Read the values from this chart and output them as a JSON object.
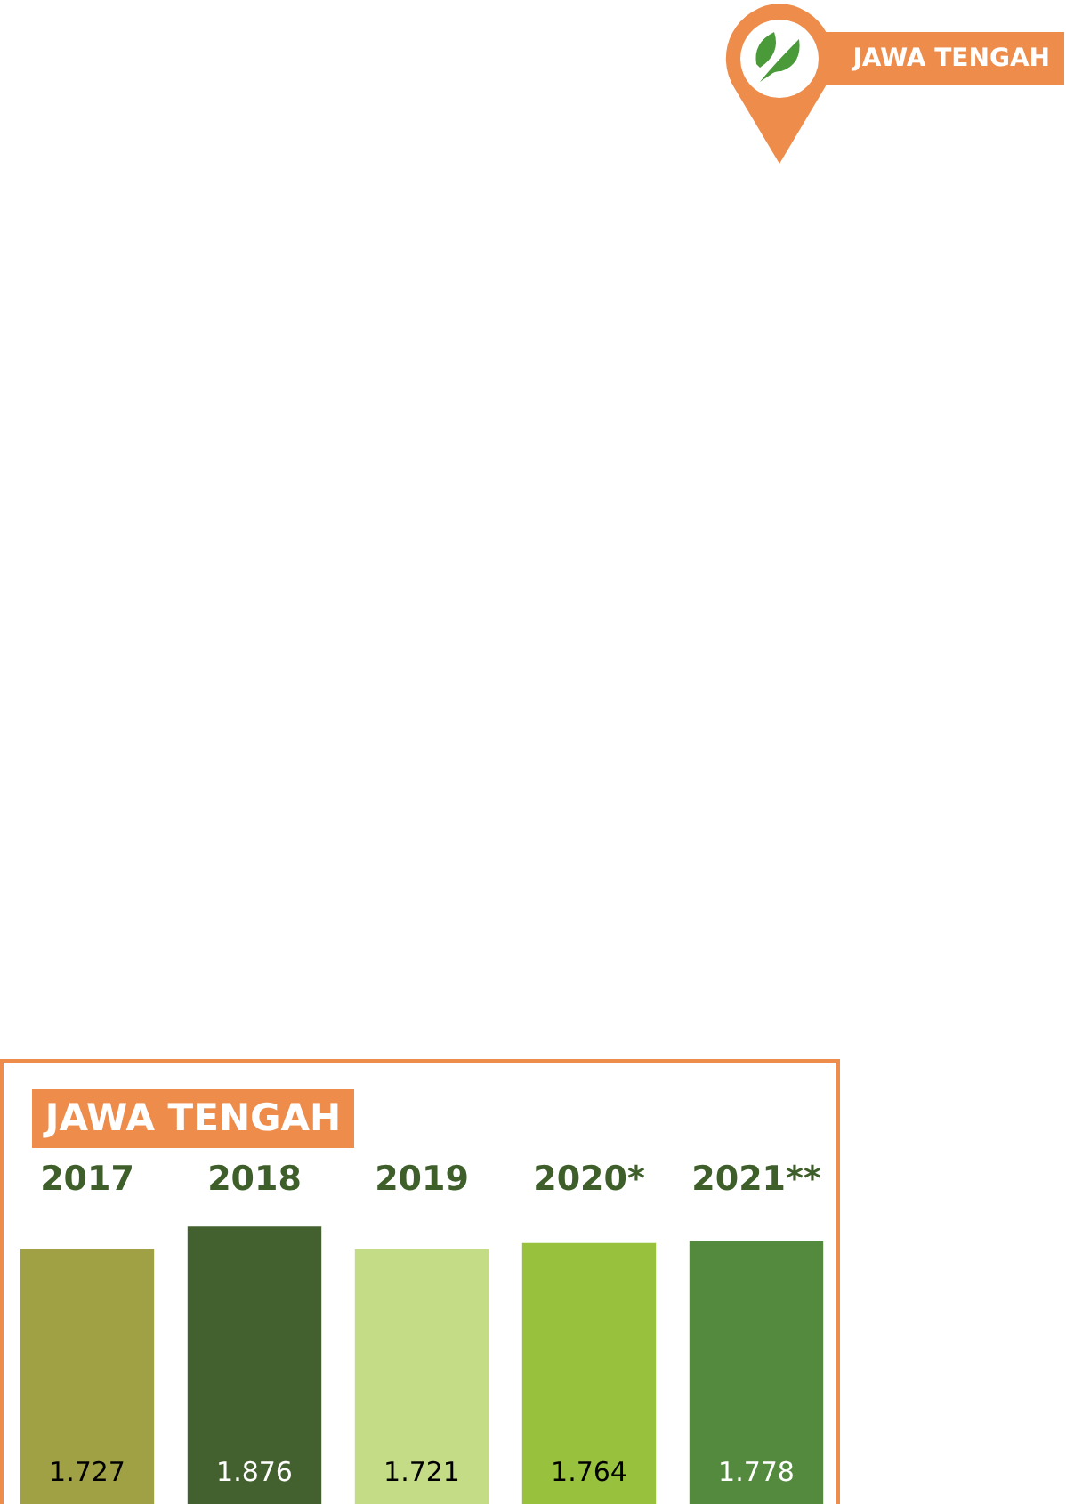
{
  "chart_data": {
    "type": "bar",
    "title": "JAWA TENGAH",
    "categories": [
      "2017",
      "2018",
      "2019",
      "2020*",
      "2021**"
    ],
    "values": [
      1.727,
      1.876,
      1.721,
      1.764,
      1.778
    ],
    "colors": [
      "#a0a044",
      "#43612f",
      "#c5dc87",
      "#98c13d",
      "#548a3e"
    ],
    "data_labels": true,
    "legend": false,
    "grid": false,
    "annotations": [
      "JAWA TENGAH"
    ]
  }
}
